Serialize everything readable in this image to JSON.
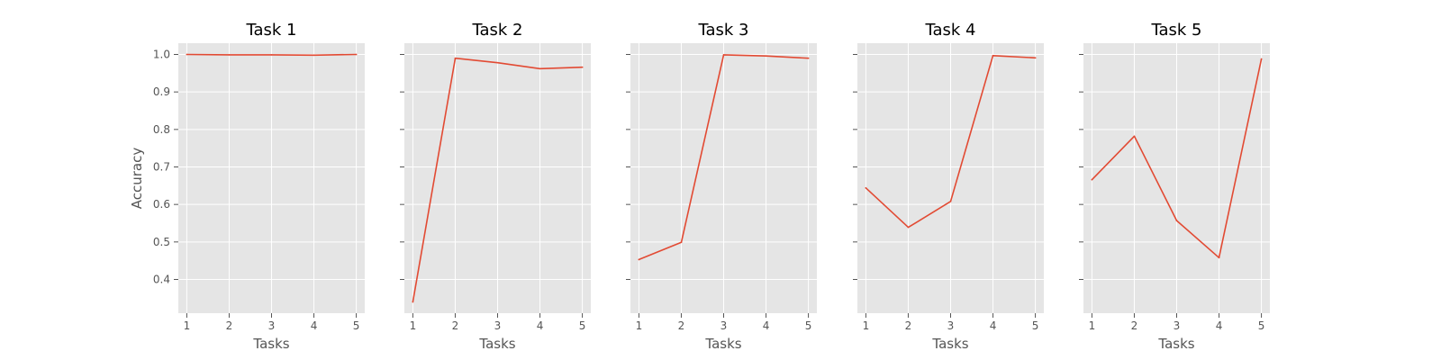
{
  "chart_data": {
    "type": "line",
    "layout": "small-multiples",
    "line_color": "#e24a33",
    "background_color": "#e5e5e5",
    "grid": true,
    "shared_y": true,
    "xlabel": "Tasks",
    "ylabel": "Accuracy",
    "x": [
      1,
      2,
      3,
      4,
      5
    ],
    "x_ticks": [
      "1",
      "2",
      "3",
      "4",
      "5"
    ],
    "xlim": [
      0.8,
      5.2
    ],
    "ylim": [
      0.31,
      1.03
    ],
    "y_ticks": [
      0.4,
      0.5,
      0.6,
      0.7,
      0.8,
      0.9,
      1.0
    ],
    "y_tick_labels": [
      "0.4",
      "0.5",
      "0.6",
      "0.7",
      "0.8",
      "0.9",
      "1.0"
    ],
    "panels": [
      {
        "title": "Task 1",
        "values": [
          1.0,
          0.999,
          0.999,
          0.998,
          1.0
        ]
      },
      {
        "title": "Task 2",
        "values": [
          0.34,
          0.99,
          0.978,
          0.962,
          0.966
        ]
      },
      {
        "title": "Task 3",
        "values": [
          0.453,
          0.499,
          0.999,
          0.996,
          0.99
        ]
      },
      {
        "title": "Task 4",
        "values": [
          0.644,
          0.539,
          0.608,
          0.997,
          0.991
        ]
      },
      {
        "title": "Task 5",
        "values": [
          0.666,
          0.782,
          0.557,
          0.458,
          0.988
        ]
      }
    ]
  }
}
